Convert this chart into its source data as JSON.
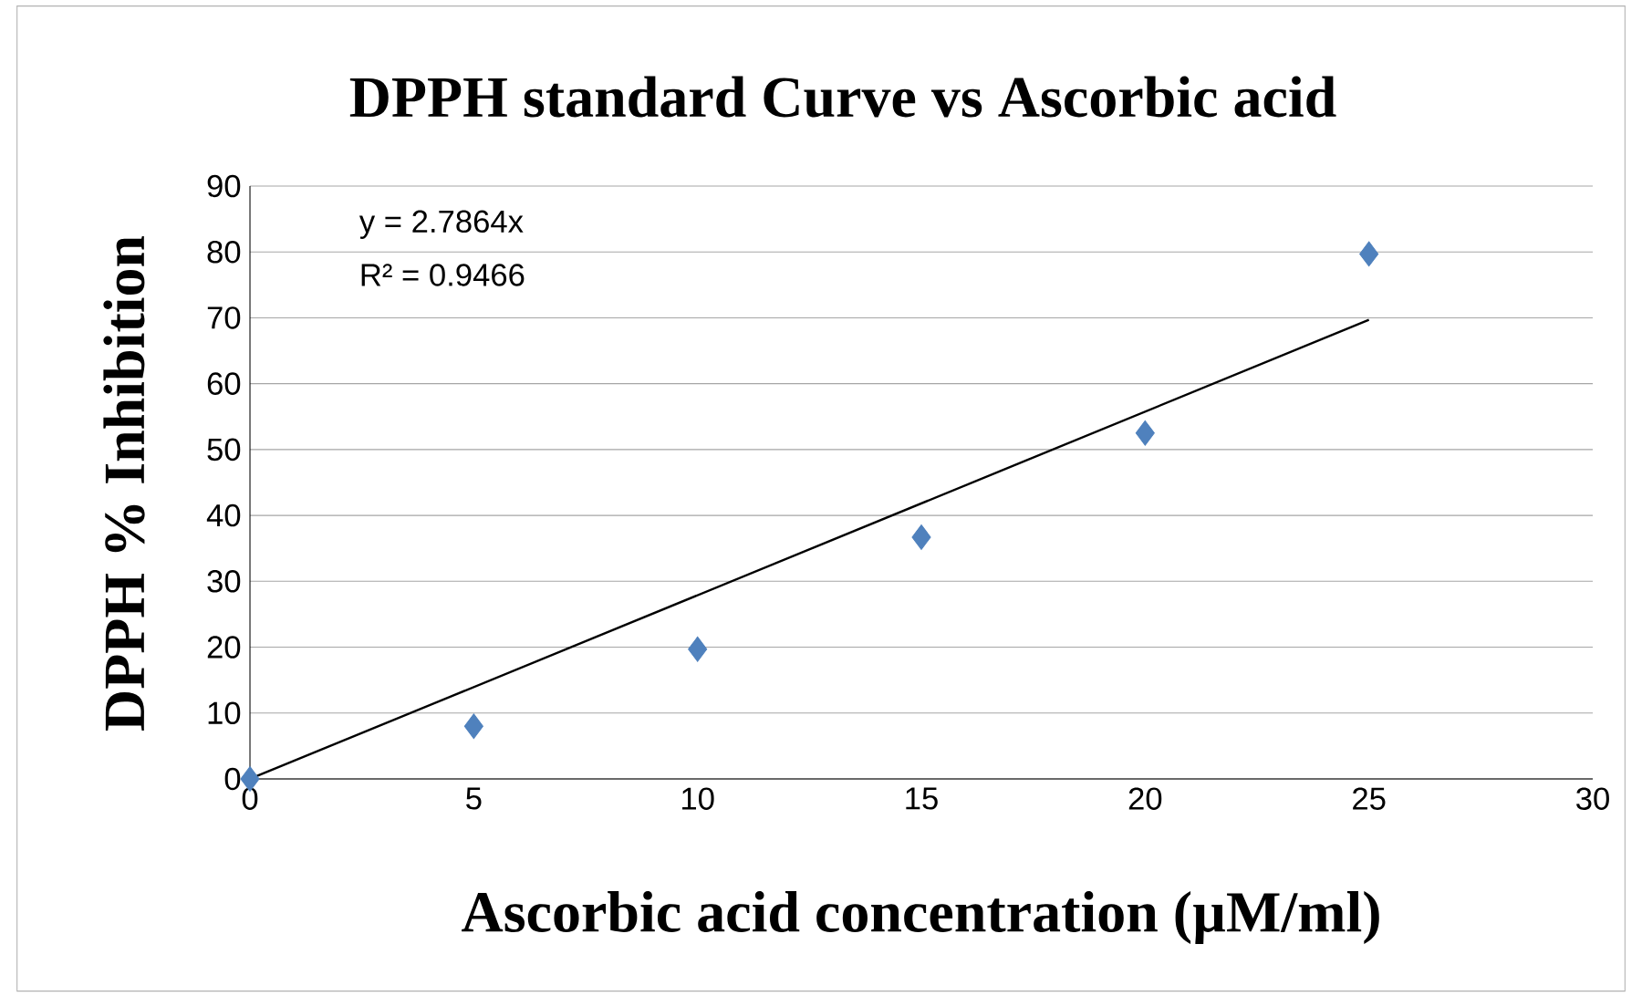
{
  "chart_data": {
    "type": "scatter",
    "title": "DPPH standard Curve vs Ascorbic acid",
    "xlabel": "Ascorbic acid concentration (µM/ml)",
    "ylabel": "DPPH % Inhibition",
    "xlim": [
      0,
      30
    ],
    "xticks": [
      0,
      5,
      10,
      15,
      20,
      25,
      30
    ],
    "ylim": [
      0,
      90
    ],
    "yticks": [
      0,
      10,
      20,
      30,
      40,
      50,
      60,
      70,
      80,
      90
    ],
    "grid": "y",
    "marker": "diamond",
    "series": [
      {
        "color": "#4f81bd",
        "x": [
          0,
          5,
          10,
          15,
          20,
          25
        ],
        "values": [
          0,
          8,
          19.7,
          36.7,
          52.5,
          79.7
        ]
      },
      {
        "type": "line",
        "marker": "none",
        "color": "#000000",
        "x": [
          0,
          25
        ],
        "values": [
          0,
          69.7
        ]
      }
    ],
    "annotations": [
      "y = 2.7864x",
      "R² = 0.9466"
    ]
  }
}
